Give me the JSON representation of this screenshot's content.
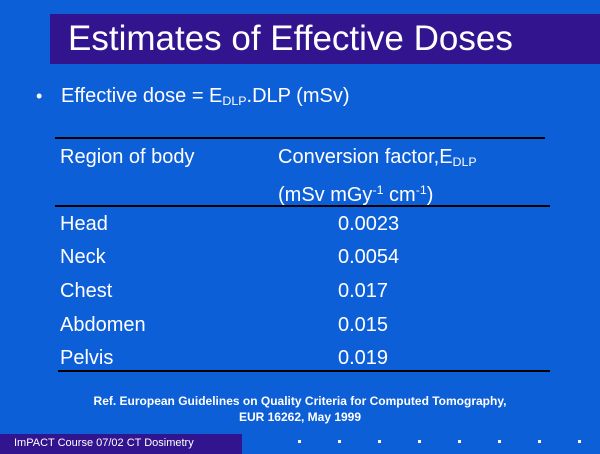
{
  "slide": {
    "title": "Estimates of Effective Doses",
    "bullet": {
      "symbol": "•",
      "prefix": "Effective dose = E",
      "subscript": "DLP",
      "suffix": ".DLP (mSv)"
    },
    "table": {
      "header_region": "Region of body",
      "header_factor_prefix": "Conversion factor,E",
      "header_factor_subscript": "DLP",
      "header_units_1": "(mSv mGy",
      "header_units_sup_1": "-1",
      "header_units_2": " cm",
      "header_units_sup_2": "-1",
      "header_units_3": ")",
      "rows": [
        {
          "region": "Head",
          "value": "0.0023"
        },
        {
          "region": "Neck",
          "value": "0.0054"
        },
        {
          "region": "Chest",
          "value": "0.017"
        },
        {
          "region": "Abdomen",
          "value": "0.015"
        },
        {
          "region": "Pelvis",
          "value": "0.019"
        }
      ]
    },
    "reference_line_1": "Ref. European Guidelines on Quality Criteria for Computed Tomography,",
    "reference_line_2": "EUR 16262, May 1999",
    "footer": "ImPACT Course 07/02 CT Dosimetry"
  },
  "colors": {
    "background": "#0d5fd8",
    "title_bar": "#32148f",
    "text": "#ffffff",
    "rules": "#000000"
  }
}
